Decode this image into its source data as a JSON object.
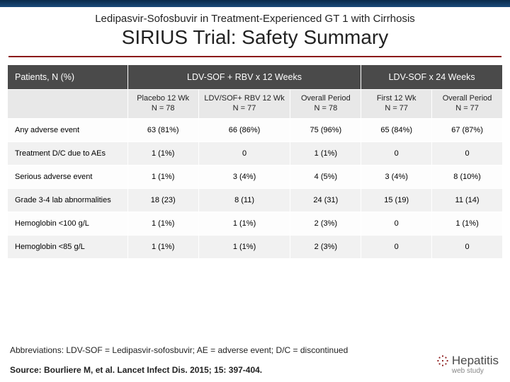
{
  "header": {
    "supertitle": "Ledipasvir-Sofosbuvir in Treatment-Experienced GT 1 with Cirrhosis",
    "title": "SIRIUS Trial: Safety Summary"
  },
  "table": {
    "corner_label": "Patients, N (%)",
    "group_headers": [
      {
        "label": "LDV-SOF + RBV x 12 Weeks",
        "span": 3
      },
      {
        "label": "LDV-SOF x 24 Weeks",
        "span": 2
      }
    ],
    "sub_headers": [
      "Placebo 12 Wk\nN = 78",
      "LDV/SOF+ RBV 12 Wk\nN = 77",
      "Overall Period\nN = 78",
      "First 12 Wk\nN = 77",
      "Overall Period\nN = 77"
    ],
    "rows": [
      {
        "label": "Any adverse event",
        "cells": [
          "63 (81%)",
          "66 (86%)",
          "75 (96%)",
          "65 (84%)",
          "67 (87%)"
        ]
      },
      {
        "label": "Treatment D/C due to AEs",
        "cells": [
          "1 (1%)",
          "0",
          "1 (1%)",
          "0",
          "0"
        ]
      },
      {
        "label": "Serious adverse event",
        "cells": [
          "1 (1%)",
          "3 (4%)",
          "4 (5%)",
          "3 (4%)",
          "8 (10%)"
        ]
      },
      {
        "label": "Grade 3-4 lab abnormalities",
        "cells": [
          "18 (23)",
          "8 (11)",
          "24 (31)",
          "15 (19)",
          "11 (14)"
        ]
      },
      {
        "label": "Hemoglobin <100 g/L",
        "cells": [
          "1 (1%)",
          "1 (1%)",
          "2 (3%)",
          "0",
          "1 (1%)"
        ]
      },
      {
        "label": "Hemoglobin <85 g/L",
        "cells": [
          "1 (1%)",
          "1 (1%)",
          "2 (3%)",
          "0",
          "0"
        ]
      }
    ],
    "col_widths": [
      "170px",
      "100px",
      "130px",
      "100px",
      "100px",
      "100px"
    ],
    "header_bg": "#4a4a4a",
    "subheader_bg": "#e8e8e8",
    "row_odd_bg": "#fdfdfd",
    "row_even_bg": "#f1f1f1",
    "rule_color": "#8b1a1a"
  },
  "footer": {
    "abbr": "Abbreviations: LDV-SOF = Ledipasvir-sofosbuvir; AE = adverse event; D/C = discontinued",
    "source": "Source: Bourliere M, et al. Lancet Infect Dis. 2015; 15: 397-404.",
    "logo_text": "Hepatitis",
    "logo_sub": "web study"
  }
}
